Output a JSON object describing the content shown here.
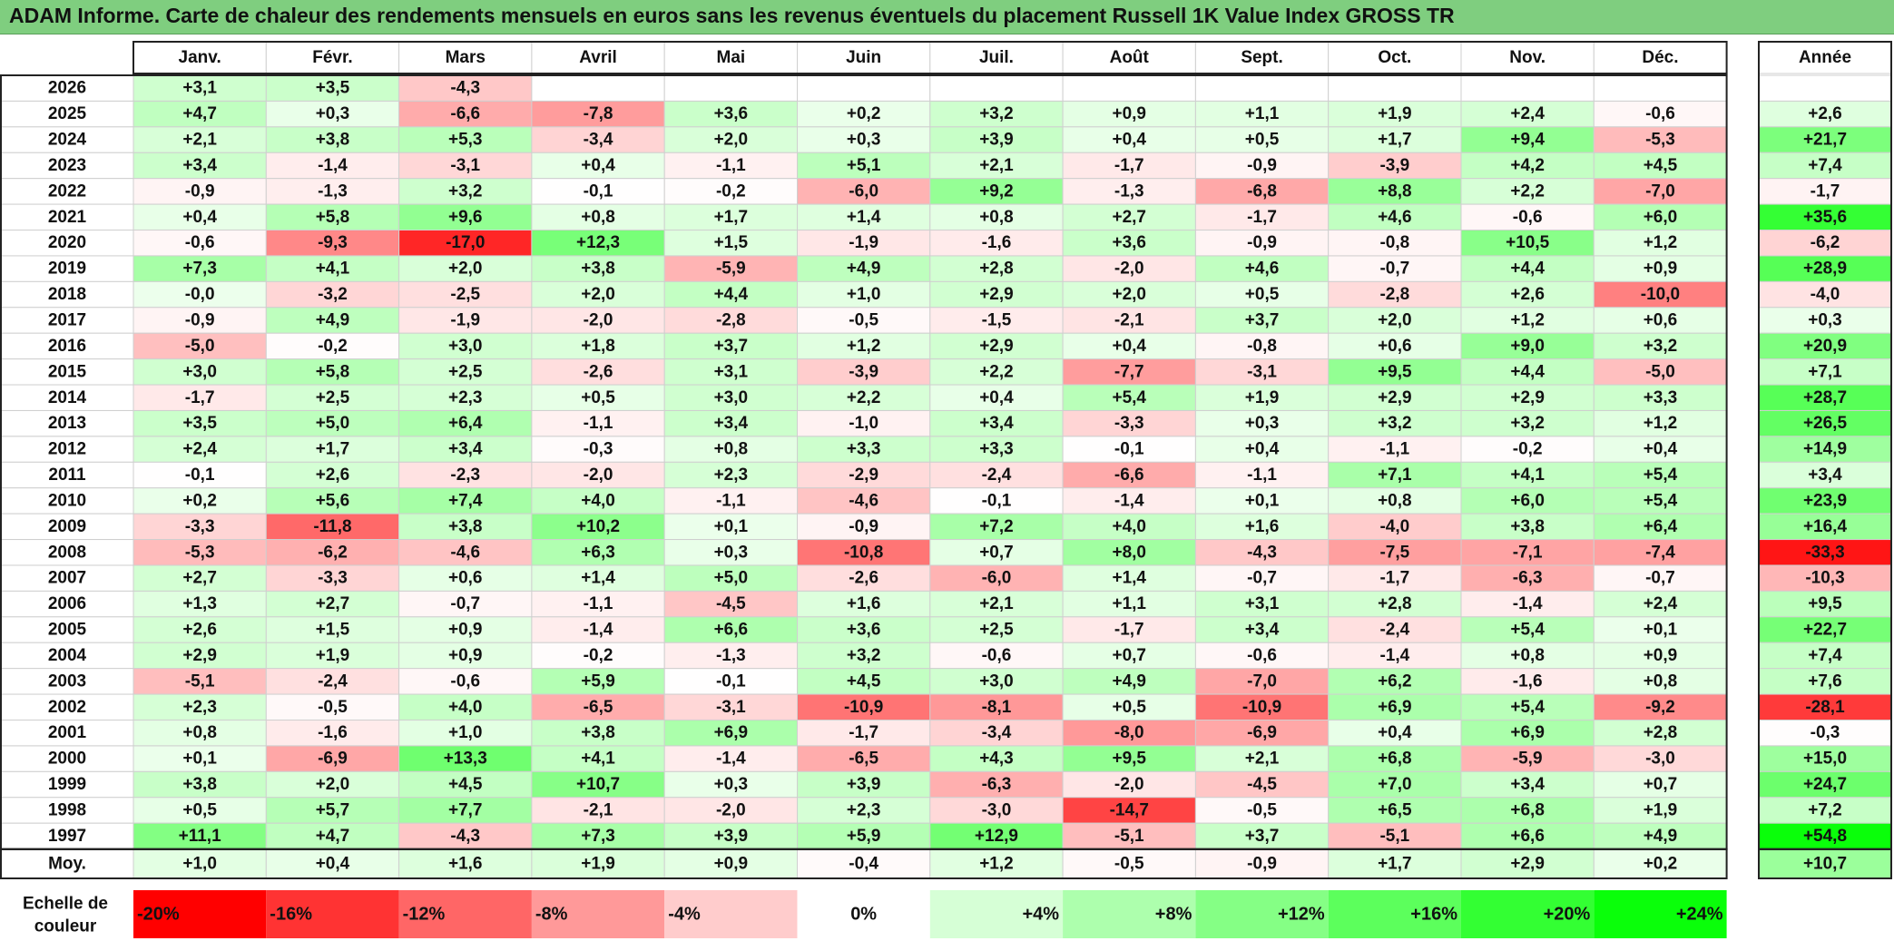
{
  "title": "ADAM Informe. Carte de chaleur des rendements mensuels en euros sans les revenus éventuels du placement Russell 1K Value Index GROSS TR",
  "chart_data": {
    "type": "heatmap",
    "title": "ADAM Informe. Carte de chaleur des rendements mensuels en euros sans les revenus éventuels du placement Russell 1K Value Index GROSS TR",
    "columns": [
      "Janv.",
      "Févr.",
      "Mars",
      "Avril",
      "Mai",
      "Juin",
      "Juil.",
      "Août",
      "Sept.",
      "Oct.",
      "Nov.",
      "Déc."
    ],
    "annual_header": "Année",
    "rows": [
      {
        "year": "2026",
        "values": [
          "+3,1",
          "+3,5",
          "-4,3",
          "",
          "",
          "",
          "",
          "",
          "",
          "",
          "",
          ""
        ],
        "annual": ""
      },
      {
        "year": "2025",
        "values": [
          "+4,7",
          "+0,3",
          "-6,6",
          "-7,8",
          "+3,6",
          "+0,2",
          "+3,2",
          "+0,9",
          "+1,1",
          "+1,9",
          "+2,4",
          "-0,6"
        ],
        "annual": "+2,6"
      },
      {
        "year": "2024",
        "values": [
          "+2,1",
          "+3,8",
          "+5,3",
          "-3,4",
          "+2,0",
          "+0,3",
          "+3,9",
          "+0,4",
          "+0,5",
          "+1,7",
          "+9,4",
          "-5,3"
        ],
        "annual": "+21,7"
      },
      {
        "year": "2023",
        "values": [
          "+3,4",
          "-1,4",
          "-3,1",
          "+0,4",
          "-1,1",
          "+5,1",
          "+2,1",
          "-1,7",
          "-0,9",
          "-3,9",
          "+4,2",
          "+4,5"
        ],
        "annual": "+7,4"
      },
      {
        "year": "2022",
        "values": [
          "-0,9",
          "-1,3",
          "+3,2",
          "-0,1",
          "-0,2",
          "-6,0",
          "+9,2",
          "-1,3",
          "-6,8",
          "+8,8",
          "+2,2",
          "-7,0"
        ],
        "annual": "-1,7"
      },
      {
        "year": "2021",
        "values": [
          "+0,4",
          "+5,8",
          "+9,6",
          "+0,8",
          "+1,7",
          "+1,4",
          "+0,8",
          "+2,7",
          "-1,7",
          "+4,6",
          "-0,6",
          "+6,0"
        ],
        "annual": "+35,6"
      },
      {
        "year": "2020",
        "values": [
          "-0,6",
          "-9,3",
          "-17,0",
          "+12,3",
          "+1,5",
          "-1,9",
          "-1,6",
          "+3,6",
          "-0,9",
          "-0,8",
          "+10,5",
          "+1,2"
        ],
        "annual": "-6,2"
      },
      {
        "year": "2019",
        "values": [
          "+7,3",
          "+4,1",
          "+2,0",
          "+3,8",
          "-5,9",
          "+4,9",
          "+2,8",
          "-2,0",
          "+4,6",
          "-0,7",
          "+4,4",
          "+0,9"
        ],
        "annual": "+28,9"
      },
      {
        "year": "2018",
        "values": [
          "-0,0",
          "-3,2",
          "-2,5",
          "+2,0",
          "+4,4",
          "+1,0",
          "+2,9",
          "+2,0",
          "+0,5",
          "-2,8",
          "+2,6",
          "-10,0"
        ],
        "annual": "-4,0"
      },
      {
        "year": "2017",
        "values": [
          "-0,9",
          "+4,9",
          "-1,9",
          "-2,0",
          "-2,8",
          "-0,5",
          "-1,5",
          "-2,1",
          "+3,7",
          "+2,0",
          "+1,2",
          "+0,6"
        ],
        "annual": "+0,3"
      },
      {
        "year": "2016",
        "values": [
          "-5,0",
          "-0,2",
          "+3,0",
          "+1,8",
          "+3,7",
          "+1,2",
          "+2,9",
          "+0,4",
          "-0,8",
          "+0,6",
          "+9,0",
          "+3,2"
        ],
        "annual": "+20,9"
      },
      {
        "year": "2015",
        "values": [
          "+3,0",
          "+5,8",
          "+2,5",
          "-2,6",
          "+3,1",
          "-3,9",
          "+2,2",
          "-7,7",
          "-3,1",
          "+9,5",
          "+4,4",
          "-5,0"
        ],
        "annual": "+7,1"
      },
      {
        "year": "2014",
        "values": [
          "-1,7",
          "+2,5",
          "+2,3",
          "+0,5",
          "+3,0",
          "+2,2",
          "+0,4",
          "+5,4",
          "+1,9",
          "+2,9",
          "+2,9",
          "+3,3"
        ],
        "annual": "+28,7"
      },
      {
        "year": "2013",
        "values": [
          "+3,5",
          "+5,0",
          "+6,4",
          "-1,1",
          "+3,4",
          "-1,0",
          "+3,4",
          "-3,3",
          "+0,3",
          "+3,2",
          "+3,2",
          "+1,2"
        ],
        "annual": "+26,5"
      },
      {
        "year": "2012",
        "values": [
          "+2,4",
          "+1,7",
          "+3,4",
          "-0,3",
          "+0,8",
          "+3,3",
          "+3,3",
          "-0,1",
          "+0,4",
          "-1,1",
          "-0,2",
          "+0,4"
        ],
        "annual": "+14,9"
      },
      {
        "year": "2011",
        "values": [
          "-0,1",
          "+2,6",
          "-2,3",
          "-2,0",
          "+2,3",
          "-2,9",
          "-2,4",
          "-6,6",
          "-1,1",
          "+7,1",
          "+4,1",
          "+5,4"
        ],
        "annual": "+3,4"
      },
      {
        "year": "2010",
        "values": [
          "+0,2",
          "+5,6",
          "+7,4",
          "+4,0",
          "-1,1",
          "-4,6",
          "-0,1",
          "-1,4",
          "+0,1",
          "+0,8",
          "+6,0",
          "+5,4"
        ],
        "annual": "+23,9"
      },
      {
        "year": "2009",
        "values": [
          "-3,3",
          "-11,8",
          "+3,8",
          "+10,2",
          "+0,1",
          "-0,9",
          "+7,2",
          "+4,0",
          "+1,6",
          "-4,0",
          "+3,8",
          "+6,4"
        ],
        "annual": "+16,4"
      },
      {
        "year": "2008",
        "values": [
          "-5,3",
          "-6,2",
          "-4,6",
          "+6,3",
          "+0,3",
          "-10,8",
          "+0,7",
          "+8,0",
          "-4,3",
          "-7,5",
          "-7,1",
          "-7,4"
        ],
        "annual": "-33,3"
      },
      {
        "year": "2007",
        "values": [
          "+2,7",
          "-3,3",
          "+0,6",
          "+1,4",
          "+5,0",
          "-2,6",
          "-6,0",
          "+1,4",
          "-0,7",
          "-1,7",
          "-6,3",
          "-0,7"
        ],
        "annual": "-10,3"
      },
      {
        "year": "2006",
        "values": [
          "+1,3",
          "+2,7",
          "-0,7",
          "-1,1",
          "-4,5",
          "+1,6",
          "+2,1",
          "+1,1",
          "+3,1",
          "+2,8",
          "-1,4",
          "+2,4"
        ],
        "annual": "+9,5"
      },
      {
        "year": "2005",
        "values": [
          "+2,6",
          "+1,5",
          "+0,9",
          "-1,4",
          "+6,6",
          "+3,6",
          "+2,5",
          "-1,7",
          "+3,4",
          "-2,4",
          "+5,4",
          "+0,1"
        ],
        "annual": "+22,7"
      },
      {
        "year": "2004",
        "values": [
          "+2,9",
          "+1,9",
          "+0,9",
          "-0,2",
          "-1,3",
          "+3,2",
          "-0,6",
          "+0,7",
          "-0,6",
          "-1,4",
          "+0,8",
          "+0,9"
        ],
        "annual": "+7,4"
      },
      {
        "year": "2003",
        "values": [
          "-5,1",
          "-2,4",
          "-0,6",
          "+5,9",
          "-0,1",
          "+4,5",
          "+3,0",
          "+4,9",
          "-7,0",
          "+6,2",
          "-1,6",
          "+0,8"
        ],
        "annual": "+7,6"
      },
      {
        "year": "2002",
        "values": [
          "+2,3",
          "-0,5",
          "+4,0",
          "-6,5",
          "-3,1",
          "-10,9",
          "-8,1",
          "+0,5",
          "-10,9",
          "+6,9",
          "+5,4",
          "-9,2"
        ],
        "annual": "-28,1"
      },
      {
        "year": "2001",
        "values": [
          "+0,8",
          "-1,6",
          "+1,0",
          "+3,8",
          "+6,9",
          "-1,7",
          "-3,4",
          "-8,0",
          "-6,9",
          "+0,4",
          "+6,9",
          "+2,8"
        ],
        "annual": "-0,3"
      },
      {
        "year": "2000",
        "values": [
          "+0,1",
          "-6,9",
          "+13,3",
          "+4,1",
          "-1,4",
          "-6,5",
          "+4,3",
          "+9,5",
          "+2,1",
          "+6,8",
          "-5,9",
          "-3,0"
        ],
        "annual": "+15,0"
      },
      {
        "year": "1999",
        "values": [
          "+3,8",
          "+2,0",
          "+4,5",
          "+10,7",
          "+0,3",
          "+3,9",
          "-6,3",
          "-2,0",
          "-4,5",
          "+7,0",
          "+3,4",
          "+0,7"
        ],
        "annual": "+24,7"
      },
      {
        "year": "1998",
        "values": [
          "+0,5",
          "+5,7",
          "+7,7",
          "-2,1",
          "-2,0",
          "+2,3",
          "-3,0",
          "-14,7",
          "-0,5",
          "+6,5",
          "+6,8",
          "+1,9"
        ],
        "annual": "+7,2"
      },
      {
        "year": "1997",
        "values": [
          "+11,1",
          "+4,7",
          "-4,3",
          "+7,3",
          "+3,9",
          "+5,9",
          "+12,9",
          "-5,1",
          "+3,7",
          "-5,1",
          "+6,6",
          "+4,9"
        ],
        "annual": "+54,8"
      }
    ],
    "average": {
      "label": "Moy.",
      "values": [
        "+1,0",
        "+0,4",
        "+1,6",
        "+1,9",
        "+0,9",
        "-0,4",
        "+1,2",
        "-0,5",
        "-0,9",
        "+1,7",
        "+2,9",
        "+0,2"
      ],
      "annual": "+10,7"
    },
    "color_scale": {
      "label_line1": "Echelle de",
      "label_line2": "couleur",
      "stops": [
        {
          "label": "-20%",
          "value": -20,
          "color": "#ff0000"
        },
        {
          "label": "-16%",
          "value": -16,
          "color": "#ff3333"
        },
        {
          "label": "-12%",
          "value": -12,
          "color": "#ff6666"
        },
        {
          "label": "-8%",
          "value": -8,
          "color": "#ff9999"
        },
        {
          "label": "-4%",
          "value": -4,
          "color": "#ffcccc"
        },
        {
          "label": "0%",
          "value": 0,
          "color": "#ffffff"
        },
        {
          "label": "+4%",
          "value": 4,
          "color": "#d6ffd6"
        },
        {
          "label": "+8%",
          "value": 8,
          "color": "#adffad"
        },
        {
          "label": "+12%",
          "value": 12,
          "color": "#85ff85"
        },
        {
          "label": "+16%",
          "value": 16,
          "color": "#5cff5c"
        },
        {
          "label": "+20%",
          "value": 20,
          "color": "#33ff33"
        },
        {
          "label": "+24%",
          "value": 24,
          "color": "#0aff0a"
        }
      ]
    }
  }
}
